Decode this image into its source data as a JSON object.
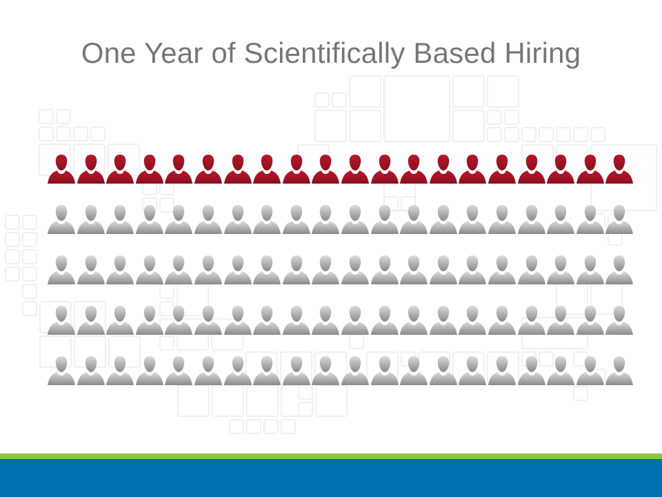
{
  "title": "One Year of Scientifically Based Hiring",
  "colors": {
    "hired": "#b5172b",
    "hired_dark": "#8d0f1f",
    "neutral_top": "#dcdcdc",
    "neutral_bottom": "#8a8a8a",
    "green_band": "#8dc63f",
    "blue_band": "#0072b4",
    "title_color": "#767676"
  },
  "icon": "person-icon",
  "people_grid": {
    "rows": 5,
    "per_row": 20,
    "highlighted_rows": 1
  }
}
